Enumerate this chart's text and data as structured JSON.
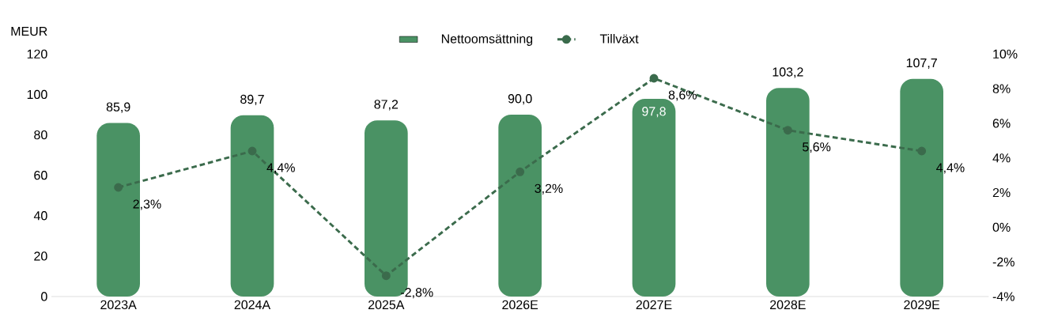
{
  "chart_data": {
    "type": "bar",
    "categories": [
      "2023A",
      "2024A",
      "2025A",
      "2026E",
      "2027E",
      "2028E",
      "2029E"
    ],
    "ylabel": "MEUR",
    "series": [
      {
        "name": "Nettoomsättning",
        "color": "#4a9264",
        "values": [
          85.9,
          89.7,
          87.2,
          90.0,
          97.8,
          103.2,
          107.7
        ],
        "value_labels": [
          "85,9",
          "89,7",
          "87,2",
          "90,0",
          "97,8",
          "103,2",
          "107,7"
        ]
      },
      {
        "name": "Tillväxt",
        "type": "line",
        "axis": "y2",
        "color": "#3b6b4c",
        "marker": "circle",
        "line_style": "dashed",
        "values": [
          2.3,
          4.4,
          -2.8,
          3.2,
          8.6,
          5.6,
          4.4
        ],
        "value_labels": [
          "2,3%",
          "4,4%",
          "-2,8%",
          "3,2%",
          "8,6%",
          "5,6%",
          "4,4%"
        ]
      }
    ],
    "ylim": [
      0,
      120
    ],
    "yticks": [
      0,
      20,
      40,
      60,
      80,
      100,
      120
    ],
    "y2lim": [
      -4,
      10
    ],
    "y2ticks": [
      {
        "value": -4,
        "label": "-4%"
      },
      {
        "value": -2,
        "label": "-2%"
      },
      {
        "value": 0,
        "label": "0%"
      },
      {
        "value": 2,
        "label": "2%"
      },
      {
        "value": 4,
        "label": "4%"
      },
      {
        "value": 6,
        "label": "6%"
      },
      {
        "value": 8,
        "label": "8%"
      },
      {
        "value": 10,
        "label": "10%"
      }
    ],
    "grid": false,
    "legend": "top"
  }
}
